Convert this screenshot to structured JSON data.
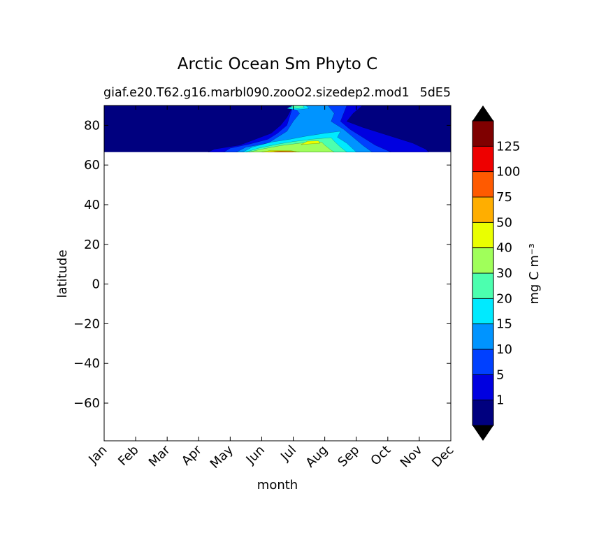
{
  "chart_data": {
    "type": "heatmap",
    "title": "Arctic Ocean Sm Phyto C",
    "subtitle": "giaf.e20.T62.g16.marbl090.zooO2.sizedep2.mod1",
    "subtitle_right": "5dE5",
    "xlabel": "month",
    "ylabel": "latitude",
    "x_categories": [
      "Jan",
      "Feb",
      "Mar",
      "Apr",
      "May",
      "Jun",
      "Jul",
      "Aug",
      "Sep",
      "Oct",
      "Nov",
      "Dec"
    ],
    "xlim": [
      1,
      12
    ],
    "ylim": [
      -79,
      90
    ],
    "y_ticks": [
      80,
      60,
      40,
      20,
      0,
      -20,
      -40,
      -60
    ],
    "y_tick_labels": [
      "80",
      "60",
      "40",
      "20",
      "0",
      "−20",
      "−40",
      "−60"
    ],
    "grid": false,
    "data_lat_range": [
      66.5,
      90
    ],
    "colorbar": {
      "label": "mg C m⁻³",
      "extend": "both",
      "levels": [
        1,
        5,
        10,
        15,
        20,
        30,
        40,
        50,
        75,
        100,
        125
      ],
      "tick_labels": [
        "1",
        "5",
        "10",
        "15",
        "20",
        "30",
        "40",
        "50",
        "75",
        "100",
        "125"
      ],
      "colors": [
        "#00007f",
        "#0000e0",
        "#0040ff",
        "#0094ff",
        "#00eaff",
        "#4cffaf",
        "#a0ff5a",
        "#eaff00",
        "#ffae00",
        "#ff5a00",
        "#ee0000",
        "#7f0000"
      ],
      "under_color": "#000000",
      "over_color": "#000000"
    },
    "contours": [
      {
        "level": 1,
        "color": "#0000e0",
        "points": [
          [
            4.3,
            66.5
          ],
          [
            4.5,
            68
          ],
          [
            5.3,
            70
          ],
          [
            5.8,
            73
          ],
          [
            6.3,
            76
          ],
          [
            6.6,
            80
          ],
          [
            6.8,
            84
          ],
          [
            7.0,
            90
          ],
          [
            9.2,
            90
          ],
          [
            8.9,
            86
          ],
          [
            8.7,
            82
          ],
          [
            9.2,
            79
          ],
          [
            10.0,
            75
          ],
          [
            10.8,
            71
          ],
          [
            11.2,
            68
          ],
          [
            11.3,
            66.5
          ]
        ]
      },
      {
        "level": 5,
        "color": "#0040ff",
        "points": [
          [
            4.8,
            66.5
          ],
          [
            5.0,
            68.5
          ],
          [
            5.6,
            70.5
          ],
          [
            6.2,
            73
          ],
          [
            6.5,
            76
          ],
          [
            6.8,
            80
          ],
          [
            6.9,
            85
          ],
          [
            7.0,
            90
          ],
          [
            8.7,
            90
          ],
          [
            8.6,
            86
          ],
          [
            8.5,
            82
          ],
          [
            8.8,
            78
          ],
          [
            9.2,
            74
          ],
          [
            9.6,
            70
          ],
          [
            10.1,
            66.5
          ]
        ]
      },
      {
        "level": 10,
        "color": "#0094ff",
        "points": [
          [
            5.2,
            66.5
          ],
          [
            5.5,
            69
          ],
          [
            6.2,
            71
          ],
          [
            6.5,
            74
          ],
          [
            6.8,
            77
          ],
          [
            7.0,
            82
          ],
          [
            7.2,
            86
          ],
          [
            7.0,
            90
          ],
          [
            8.1,
            90
          ],
          [
            8.3,
            86
          ],
          [
            8.2,
            82
          ],
          [
            8.6,
            78
          ],
          [
            8.9,
            74
          ],
          [
            9.2,
            70
          ],
          [
            9.5,
            66.5
          ]
        ]
      },
      {
        "level": 15,
        "color": "#00eaff",
        "points": [
          [
            5.4,
            66.5
          ],
          [
            5.7,
            69
          ],
          [
            6.3,
            71.5
          ],
          [
            6.9,
            73
          ],
          [
            7.4,
            74.5
          ],
          [
            8.0,
            76
          ],
          [
            8.5,
            77
          ],
          [
            8.4,
            74
          ],
          [
            8.7,
            71
          ],
          [
            9.0,
            66.5
          ]
        ]
      },
      {
        "level": 15,
        "color": "#00eaff",
        "points": [
          [
            6.8,
            88.5
          ],
          [
            7.0,
            90
          ],
          [
            7.4,
            90
          ],
          [
            7.5,
            88.5
          ],
          [
            7.1,
            87.8
          ]
        ]
      },
      {
        "level": 20,
        "color": "#4cffaf",
        "points": [
          [
            5.5,
            66.5
          ],
          [
            5.9,
            68.5
          ],
          [
            6.5,
            70.5
          ],
          [
            7.0,
            71.8
          ],
          [
            7.6,
            73
          ],
          [
            8.2,
            73.8
          ],
          [
            8.3,
            72
          ],
          [
            8.5,
            69
          ],
          [
            8.7,
            66.5
          ]
        ]
      },
      {
        "level": 20,
        "color": "#4cffaf",
        "points": [
          [
            6.9,
            89
          ],
          [
            7.05,
            90
          ],
          [
            7.3,
            90
          ],
          [
            7.35,
            89
          ],
          [
            7.15,
            88.5
          ]
        ]
      },
      {
        "level": 30,
        "color": "#a0ff5a",
        "points": [
          [
            5.6,
            66.5
          ],
          [
            6.0,
            68
          ],
          [
            6.6,
            69.8
          ],
          [
            7.2,
            71
          ],
          [
            7.9,
            71.6
          ],
          [
            8.0,
            70
          ],
          [
            8.2,
            67.5
          ],
          [
            8.3,
            66.5
          ]
        ]
      },
      {
        "level": 40,
        "color": "#eaff00",
        "points": [
          [
            7.25,
            70.3
          ],
          [
            7.45,
            72
          ],
          [
            7.8,
            72.2
          ],
          [
            7.85,
            71
          ],
          [
            7.5,
            70.6
          ]
        ]
      },
      {
        "level": 40,
        "color": "#eaff00",
        "points": [
          [
            6.0,
            66.5
          ],
          [
            6.3,
            67.4
          ],
          [
            6.9,
            67.3
          ],
          [
            7.2,
            66.5
          ]
        ]
      },
      {
        "level": 50,
        "color": "#ffae00",
        "points": [
          [
            6.2,
            66.5
          ],
          [
            6.5,
            67.0
          ],
          [
            7.0,
            66.9
          ],
          [
            7.1,
            66.5
          ]
        ]
      },
      {
        "level": 75,
        "color": "#ff5a00",
        "points": [
          [
            6.4,
            66.5
          ],
          [
            6.6,
            66.8
          ],
          [
            6.9,
            66.75
          ],
          [
            7.0,
            66.5
          ]
        ]
      }
    ]
  }
}
